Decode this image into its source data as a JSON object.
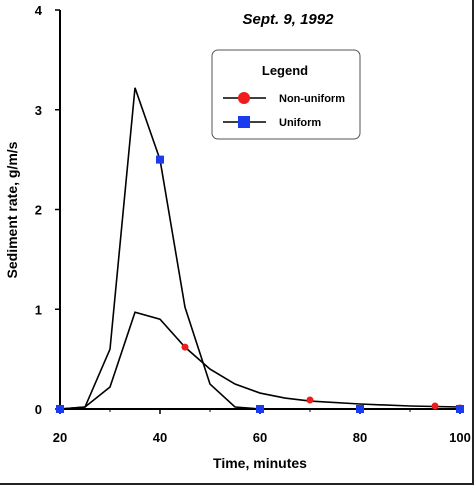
{
  "colors": {
    "non_uniform": "#ee1c1c",
    "uniform": "#1a3cf0",
    "line": "#000000"
  },
  "chart_data": {
    "type": "line",
    "title": "Sept. 9, 1992",
    "xlabel": "Time, minutes",
    "ylabel": "Sediment rate, g/m/s",
    "xlim": [
      20,
      100
    ],
    "ylim": [
      0,
      4
    ],
    "x_ticks": [
      "20",
      "40",
      "60",
      "80",
      "100"
    ],
    "y_ticks": [
      "0",
      "1",
      "2",
      "3",
      "4"
    ],
    "grid": false,
    "legend": {
      "title": "Legend",
      "placement": "top-right",
      "entries": [
        "Non-uniform",
        "Uniform"
      ]
    },
    "series": [
      {
        "name": "Non-uniform",
        "marker": "circle",
        "color": "#ee1c1c",
        "line": [
          [
            20,
            0
          ],
          [
            25,
            0.02
          ],
          [
            30,
            0.22
          ],
          [
            35,
            0.97
          ],
          [
            40,
            0.9
          ],
          [
            45,
            0.62
          ],
          [
            50,
            0.4
          ],
          [
            55,
            0.25
          ],
          [
            60,
            0.16
          ],
          [
            65,
            0.11
          ],
          [
            70,
            0.08
          ],
          [
            80,
            0.05
          ],
          [
            90,
            0.03
          ],
          [
            95,
            0.025
          ],
          [
            100,
            0.02
          ]
        ],
        "markers": [
          [
            20,
            0
          ],
          [
            45,
            0.62
          ],
          [
            70,
            0.09
          ],
          [
            95,
            0.03
          ],
          [
            100,
            0.01
          ]
        ]
      },
      {
        "name": "Uniform",
        "marker": "square",
        "color": "#1a3cf0",
        "line": [
          [
            20,
            0
          ],
          [
            25,
            0.02
          ],
          [
            30,
            0.6
          ],
          [
            35,
            3.22
          ],
          [
            40,
            2.5
          ],
          [
            45,
            1.02
          ],
          [
            50,
            0.25
          ],
          [
            55,
            0.02
          ],
          [
            60,
            0
          ],
          [
            80,
            0
          ],
          [
            100,
            0
          ]
        ],
        "markers": [
          [
            20,
            0
          ],
          [
            40,
            2.5
          ],
          [
            60,
            0
          ],
          [
            80,
            0
          ],
          [
            100,
            0
          ]
        ]
      }
    ]
  }
}
